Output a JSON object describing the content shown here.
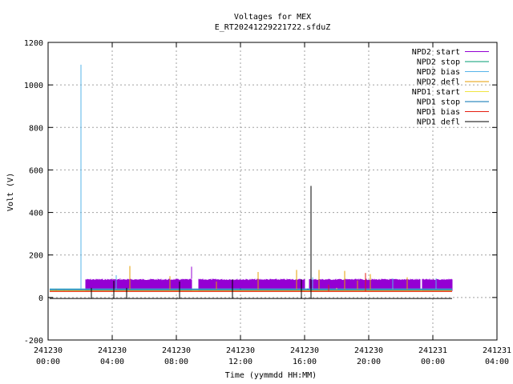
{
  "chart_data": {
    "type": "line",
    "title": "Voltages for MEX",
    "subtitle": "E_RT20241229221722.sfduZ",
    "xlabel": "Time (yymmdd HH:MM)",
    "ylabel": "Volt (V)",
    "xlim": [
      0,
      28
    ],
    "ylim": [
      -200,
      1200
    ],
    "yticks": [
      -200,
      0,
      200,
      400,
      600,
      800,
      1000,
      1200
    ],
    "xticks": [
      {
        "h": 0,
        "date": "241230",
        "time": "00:00"
      },
      {
        "h": 4,
        "date": "241230",
        "time": "04:00"
      },
      {
        "h": 8,
        "date": "241230",
        "time": "08:00"
      },
      {
        "h": 12,
        "date": "241230",
        "time": "12:00"
      },
      {
        "h": 16,
        "date": "241230",
        "time": "16:00"
      },
      {
        "h": 20,
        "date": "241230",
        "time": "20:00"
      },
      {
        "h": 24,
        "date": "241231",
        "time": "00:00"
      },
      {
        "h": 28,
        "date": "241231",
        "time": "04:00"
      }
    ],
    "grid": true,
    "legend_position": "top-right",
    "series": [
      {
        "name": "NPD2 start",
        "color": "#9400d3",
        "kind": "band",
        "low": 30,
        "high": 88,
        "segments": [
          [
            2.35,
            8.95
          ],
          [
            9.4,
            16.0
          ],
          [
            16.3,
            23.2
          ],
          [
            23.35,
            25.2
          ]
        ],
        "spikes": [
          [
            8.95,
            145
          ],
          [
            4.5,
            90
          ],
          [
            14.0,
            88
          ]
        ]
      },
      {
        "name": "NPD2 stop",
        "color": "#009e73",
        "kind": "flat",
        "value": 40,
        "start": 0.1,
        "end": 25.2,
        "spikes": []
      },
      {
        "name": "NPD2 bias",
        "color": "#56b4e9",
        "kind": "flat",
        "value": 40,
        "start": 0.1,
        "end": 25.2,
        "spikes": [
          [
            2.05,
            1095
          ],
          [
            4.25,
            105
          ],
          [
            16.5,
            95
          ],
          [
            21.5,
            90
          ],
          [
            24.2,
            90
          ]
        ]
      },
      {
        "name": "NPD2 defl",
        "color": "#e69f00",
        "kind": "flat",
        "value": 30,
        "start": 0.1,
        "end": 25.2,
        "spikes": [
          [
            0.5,
            40
          ],
          [
            1.0,
            38
          ],
          [
            1.3,
            36
          ],
          [
            5.1,
            148
          ],
          [
            7.6,
            100
          ],
          [
            13.1,
            120
          ],
          [
            15.5,
            130
          ],
          [
            16.9,
            130
          ],
          [
            18.5,
            125
          ],
          [
            20.1,
            110
          ],
          [
            22.4,
            95
          ],
          [
            10.5,
            75
          ],
          [
            19.3,
            80
          ]
        ]
      },
      {
        "name": "NPD1 start",
        "color": "#f0e442",
        "kind": "flat",
        "value": 34,
        "start": 0.1,
        "end": 25.2,
        "spikes": [
          [
            2.2,
            38
          ],
          [
            18.0,
            45
          ],
          [
            21.5,
            40
          ]
        ]
      },
      {
        "name": "NPD1 stop",
        "color": "#0072b2",
        "kind": "flat",
        "value": 36,
        "start": 0.1,
        "end": 25.2,
        "spikes": [
          [
            12.0,
            44
          ],
          [
            16.2,
            42
          ]
        ]
      },
      {
        "name": "NPD1 bias",
        "color": "#e51e10",
        "kind": "flat",
        "value": 28,
        "start": 0.1,
        "end": 25.2,
        "spikes": [
          [
            19.8,
            115
          ],
          [
            17.5,
            60
          ]
        ]
      },
      {
        "name": "NPD1 defl",
        "color": "#000000",
        "kind": "flat",
        "value": -5,
        "start": 0.1,
        "end": 25.2,
        "spikes": [
          [
            2.7,
            45
          ],
          [
            4.1,
            78
          ],
          [
            4.9,
            45
          ],
          [
            8.2,
            75
          ],
          [
            11.5,
            85
          ],
          [
            15.8,
            85
          ],
          [
            16.4,
            525
          ]
        ]
      }
    ]
  }
}
